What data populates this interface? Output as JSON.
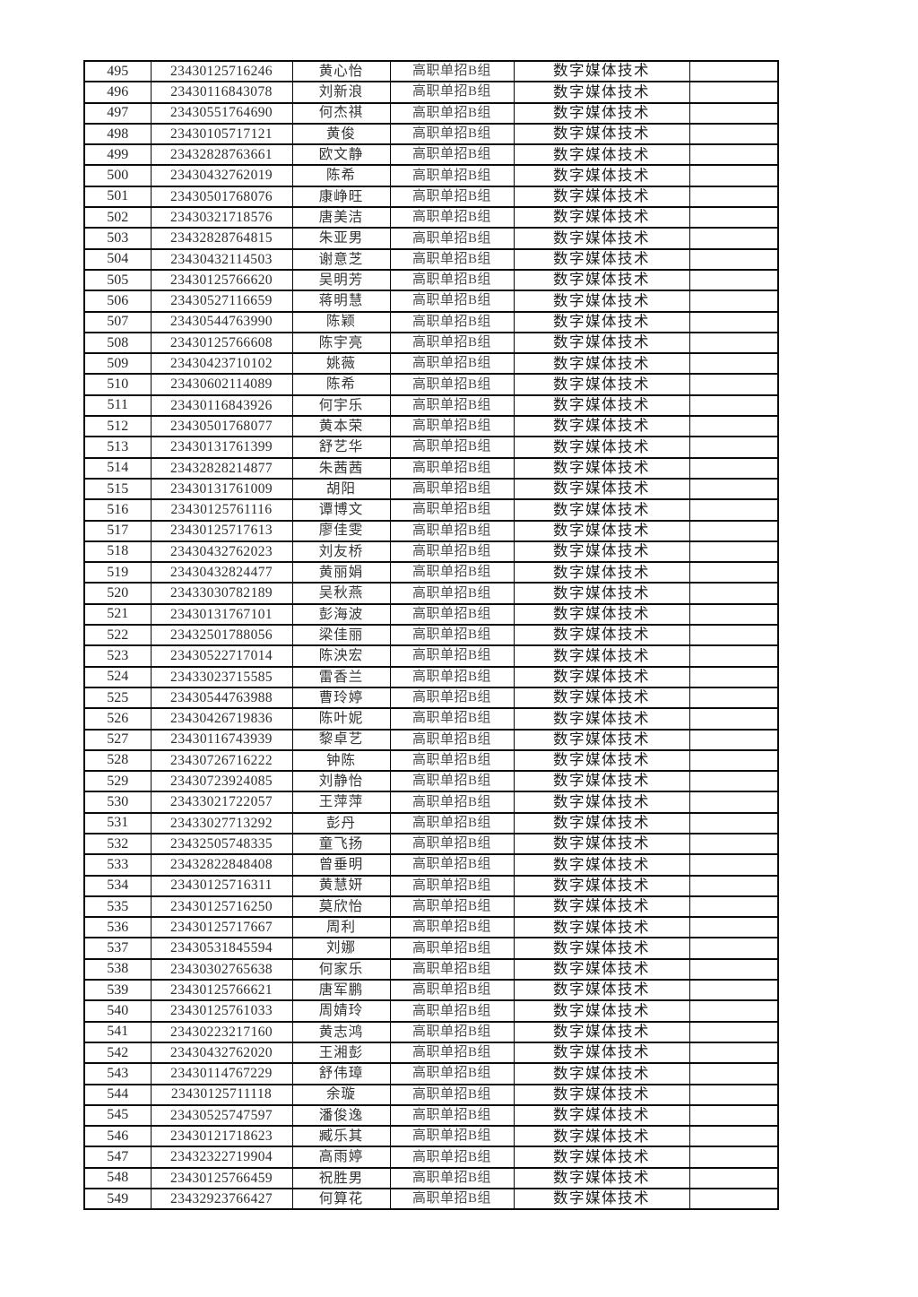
{
  "colors": {
    "page_background": "#ffffff",
    "table_border": "#0a0a0a",
    "text_dark": "#1c1c1c",
    "text_group_gray": "#4d4d4d"
  },
  "table": {
    "rows": [
      {
        "no": "495",
        "id": "23430125716246",
        "name": "黄心怡",
        "group": "高职单招B组",
        "major": "数字媒体技术",
        "note": ""
      },
      {
        "no": "496",
        "id": "23430116843078",
        "name": "刘新浪",
        "group": "高职单招B组",
        "major": "数字媒体技术",
        "note": ""
      },
      {
        "no": "497",
        "id": "23430551764690",
        "name": "何杰祺",
        "group": "高职单招B组",
        "major": "数字媒体技术",
        "note": ""
      },
      {
        "no": "498",
        "id": "23430105717121",
        "name": "黄俊",
        "group": "高职单招B组",
        "major": "数字媒体技术",
        "note": ""
      },
      {
        "no": "499",
        "id": "23432828763661",
        "name": "欧文静",
        "group": "高职单招B组",
        "major": "数字媒体技术",
        "note": ""
      },
      {
        "no": "500",
        "id": "23430432762019",
        "name": "陈希",
        "group": "高职单招B组",
        "major": "数字媒体技术",
        "note": ""
      },
      {
        "no": "501",
        "id": "23430501768076",
        "name": "康峥旺",
        "group": "高职单招B组",
        "major": "数字媒体技术",
        "note": ""
      },
      {
        "no": "502",
        "id": "23430321718576",
        "name": "唐美洁",
        "group": "高职单招B组",
        "major": "数字媒体技术",
        "note": ""
      },
      {
        "no": "503",
        "id": "23432828764815",
        "name": "朱亚男",
        "group": "高职单招B组",
        "major": "数字媒体技术",
        "note": ""
      },
      {
        "no": "504",
        "id": "23430432114503",
        "name": "谢意芝",
        "group": "高职单招B组",
        "major": "数字媒体技术",
        "note": ""
      },
      {
        "no": "505",
        "id": "23430125766620",
        "name": "吴明芳",
        "group": "高职单招B组",
        "major": "数字媒体技术",
        "note": ""
      },
      {
        "no": "506",
        "id": "23430527116659",
        "name": "蒋明慧",
        "group": "高职单招B组",
        "major": "数字媒体技术",
        "note": ""
      },
      {
        "no": "507",
        "id": "23430544763990",
        "name": "陈颖",
        "group": "高职单招B组",
        "major": "数字媒体技术",
        "note": ""
      },
      {
        "no": "508",
        "id": "23430125766608",
        "name": "陈宇亮",
        "group": "高职单招B组",
        "major": "数字媒体技术",
        "note": ""
      },
      {
        "no": "509",
        "id": "23430423710102",
        "name": "姚薇",
        "group": "高职单招B组",
        "major": "数字媒体技术",
        "note": ""
      },
      {
        "no": "510",
        "id": "23430602114089",
        "name": "陈希",
        "group": "高职单招B组",
        "major": "数字媒体技术",
        "note": ""
      },
      {
        "no": "511",
        "id": "23430116843926",
        "name": "何宇乐",
        "group": "高职单招B组",
        "major": "数字媒体技术",
        "note": ""
      },
      {
        "no": "512",
        "id": "23430501768077",
        "name": "黄本荣",
        "group": "高职单招B组",
        "major": "数字媒体技术",
        "note": ""
      },
      {
        "no": "513",
        "id": "23430131761399",
        "name": "舒艺华",
        "group": "高职单招B组",
        "major": "数字媒体技术",
        "note": ""
      },
      {
        "no": "514",
        "id": "23432828214877",
        "name": "朱茜茜",
        "group": "高职单招B组",
        "major": "数字媒体技术",
        "note": ""
      },
      {
        "no": "515",
        "id": "23430131761009",
        "name": "胡阳",
        "group": "高职单招B组",
        "major": "数字媒体技术",
        "note": ""
      },
      {
        "no": "516",
        "id": "23430125761116",
        "name": "谭博文",
        "group": "高职单招B组",
        "major": "数字媒体技术",
        "note": ""
      },
      {
        "no": "517",
        "id": "23430125717613",
        "name": "廖佳雯",
        "group": "高职单招B组",
        "major": "数字媒体技术",
        "note": ""
      },
      {
        "no": "518",
        "id": "23430432762023",
        "name": "刘友桥",
        "group": "高职单招B组",
        "major": "数字媒体技术",
        "note": ""
      },
      {
        "no": "519",
        "id": "23430432824477",
        "name": "黄丽娟",
        "group": "高职单招B组",
        "major": "数字媒体技术",
        "note": ""
      },
      {
        "no": "520",
        "id": "23433030782189",
        "name": "吴秋燕",
        "group": "高职单招B组",
        "major": "数字媒体技术",
        "note": ""
      },
      {
        "no": "521",
        "id": "23430131767101",
        "name": "彭海波",
        "group": "高职单招B组",
        "major": "数字媒体技术",
        "note": ""
      },
      {
        "no": "522",
        "id": "23432501788056",
        "name": "梁佳丽",
        "group": "高职单招B组",
        "major": "数字媒体技术",
        "note": ""
      },
      {
        "no": "523",
        "id": "23430522717014",
        "name": "陈泱宏",
        "group": "高职单招B组",
        "major": "数字媒体技术",
        "note": ""
      },
      {
        "no": "524",
        "id": "23433023715585",
        "name": "雷香兰",
        "group": "高职单招B组",
        "major": "数字媒体技术",
        "note": ""
      },
      {
        "no": "525",
        "id": "23430544763988",
        "name": "曹玲婷",
        "group": "高职单招B组",
        "major": "数字媒体技术",
        "note": ""
      },
      {
        "no": "526",
        "id": "23430426719836",
        "name": "陈叶妮",
        "group": "高职单招B组",
        "major": "数字媒体技术",
        "note": ""
      },
      {
        "no": "527",
        "id": "23430116743939",
        "name": "黎卓艺",
        "group": "高职单招B组",
        "major": "数字媒体技术",
        "note": ""
      },
      {
        "no": "528",
        "id": "23430726716222",
        "name": "钟陈",
        "group": "高职单招B组",
        "major": "数字媒体技术",
        "note": ""
      },
      {
        "no": "529",
        "id": "23430723924085",
        "name": "刘静怡",
        "group": "高职单招B组",
        "major": "数字媒体技术",
        "note": ""
      },
      {
        "no": "530",
        "id": "23433021722057",
        "name": "王萍萍",
        "group": "高职单招B组",
        "major": "数字媒体技术",
        "note": ""
      },
      {
        "no": "531",
        "id": "23433027713292",
        "name": "彭丹",
        "group": "高职单招B组",
        "major": "数字媒体技术",
        "note": ""
      },
      {
        "no": "532",
        "id": "23432505748335",
        "name": "童飞扬",
        "group": "高职单招B组",
        "major": "数字媒体技术",
        "note": ""
      },
      {
        "no": "533",
        "id": "23432822848408",
        "name": "曾垂明",
        "group": "高职单招B组",
        "major": "数字媒体技术",
        "note": ""
      },
      {
        "no": "534",
        "id": "23430125716311",
        "name": "黄慧妍",
        "group": "高职单招B组",
        "major": "数字媒体技术",
        "note": ""
      },
      {
        "no": "535",
        "id": "23430125716250",
        "name": "莫欣怡",
        "group": "高职单招B组",
        "major": "数字媒体技术",
        "note": ""
      },
      {
        "no": "536",
        "id": "23430125717667",
        "name": "周利",
        "group": "高职单招B组",
        "major": "数字媒体技术",
        "note": ""
      },
      {
        "no": "537",
        "id": "23430531845594",
        "name": "刘娜",
        "group": "高职单招B组",
        "major": "数字媒体技术",
        "note": ""
      },
      {
        "no": "538",
        "id": "23430302765638",
        "name": "何家乐",
        "group": "高职单招B组",
        "major": "数字媒体技术",
        "note": ""
      },
      {
        "no": "539",
        "id": "23430125766621",
        "name": "唐军鹏",
        "group": "高职单招B组",
        "major": "数字媒体技术",
        "note": ""
      },
      {
        "no": "540",
        "id": "23430125761033",
        "name": "周婧玲",
        "group": "高职单招B组",
        "major": "数字媒体技术",
        "note": ""
      },
      {
        "no": "541",
        "id": "23430223217160",
        "name": "黄志鸿",
        "group": "高职单招B组",
        "major": "数字媒体技术",
        "note": ""
      },
      {
        "no": "542",
        "id": "23430432762020",
        "name": "王湘彭",
        "group": "高职单招B组",
        "major": "数字媒体技术",
        "note": ""
      },
      {
        "no": "543",
        "id": "23430114767229",
        "name": "舒伟璋",
        "group": "高职单招B组",
        "major": "数字媒体技术",
        "note": ""
      },
      {
        "no": "544",
        "id": "23430125711118",
        "name": "余璇",
        "group": "高职单招B组",
        "major": "数字媒体技术",
        "note": ""
      },
      {
        "no": "545",
        "id": "23430525747597",
        "name": "潘俊逸",
        "group": "高职单招B组",
        "major": "数字媒体技术",
        "note": ""
      },
      {
        "no": "546",
        "id": "23430121718623",
        "name": "臧乐其",
        "group": "高职单招B组",
        "major": "数字媒体技术",
        "note": ""
      },
      {
        "no": "547",
        "id": "23432322719904",
        "name": "高雨婷",
        "group": "高职单招B组",
        "major": "数字媒体技术",
        "note": ""
      },
      {
        "no": "548",
        "id": "23430125766459",
        "name": "祝胜男",
        "group": "高职单招B组",
        "major": "数字媒体技术",
        "note": ""
      },
      {
        "no": "549",
        "id": "23432923766427",
        "name": "何算花",
        "group": "高职单招B组",
        "major": "数字媒体技术",
        "note": ""
      }
    ]
  }
}
